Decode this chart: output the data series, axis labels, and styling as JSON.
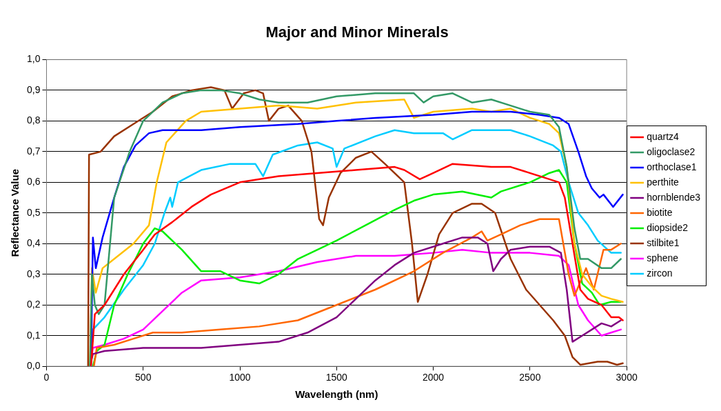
{
  "chart_data": {
    "type": "line",
    "title": "Major and Minor Minerals",
    "xlabel": "Wavelength (nm)",
    "ylabel": "Reflectance Value",
    "xlim": [
      0,
      3000
    ],
    "xticks": [
      0,
      500,
      1000,
      1500,
      2000,
      2500,
      3000
    ],
    "ylim": [
      0,
      1
    ],
    "yticks": [
      {
        "value": 0,
        "label": "0,0"
      },
      {
        "value": 0.1,
        "label": "0,1"
      },
      {
        "value": 0.2,
        "label": "0,2"
      },
      {
        "value": 0.3,
        "label": "0,3"
      },
      {
        "value": 0.4,
        "label": "0,4"
      },
      {
        "value": 0.5,
        "label": "0,5"
      },
      {
        "value": 0.6,
        "label": "0,6"
      },
      {
        "value": 0.7,
        "label": "0,7"
      },
      {
        "value": 0.8,
        "label": "0,8"
      },
      {
        "value": 0.9,
        "label": "0,9"
      },
      {
        "value": 1,
        "label": "1,0"
      }
    ],
    "grid": "y",
    "legend": "right",
    "marker": "none",
    "line_style": "solid",
    "series": [
      {
        "name": "quartz4",
        "color": "#ff0000",
        "x": [
          230,
          250,
          300,
          400,
          500,
          560,
          650,
          750,
          850,
          1000,
          1200,
          1400,
          1600,
          1800,
          1850,
          1930,
          2000,
          2100,
          2300,
          2400,
          2550,
          2650,
          2680,
          2720,
          2760,
          2800,
          2870,
          2920,
          2960,
          2980
        ],
        "values": [
          0,
          0.17,
          0.2,
          0.3,
          0.38,
          0.43,
          0.47,
          0.52,
          0.56,
          0.6,
          0.62,
          0.63,
          0.64,
          0.65,
          0.64,
          0.61,
          0.63,
          0.66,
          0.65,
          0.65,
          0.62,
          0.6,
          0.55,
          0.4,
          0.25,
          0.22,
          0.2,
          0.16,
          0.16,
          0.15
        ]
      },
      {
        "name": "oligoclase2",
        "color": "#339966",
        "x": [
          225,
          235,
          250,
          270,
          300,
          350,
          430,
          500,
          600,
          700,
          800,
          900,
          1000,
          1100,
          1200,
          1350,
          1500,
          1700,
          1900,
          1950,
          2000,
          2100,
          2200,
          2300,
          2400,
          2500,
          2600,
          2650,
          2690,
          2730,
          2760,
          2800,
          2870,
          2920,
          2970
        ],
        "values": [
          0,
          0.3,
          0.2,
          0.17,
          0.2,
          0.55,
          0.7,
          0.8,
          0.86,
          0.89,
          0.9,
          0.9,
          0.89,
          0.87,
          0.86,
          0.86,
          0.88,
          0.89,
          0.89,
          0.86,
          0.88,
          0.89,
          0.86,
          0.87,
          0.85,
          0.83,
          0.82,
          0.78,
          0.65,
          0.45,
          0.35,
          0.35,
          0.32,
          0.32,
          0.35
        ]
      },
      {
        "name": "orthoclase1",
        "color": "#0000ff",
        "x": [
          230,
          240,
          255,
          290,
          350,
          400,
          460,
          530,
          600,
          800,
          1000,
          1300,
          1500,
          1700,
          2000,
          2200,
          2400,
          2550,
          2650,
          2700,
          2750,
          2790,
          2820,
          2860,
          2880,
          2930,
          2980
        ],
        "values": [
          0,
          0.42,
          0.32,
          0.42,
          0.55,
          0.65,
          0.72,
          0.76,
          0.77,
          0.77,
          0.78,
          0.79,
          0.8,
          0.81,
          0.82,
          0.83,
          0.83,
          0.82,
          0.81,
          0.79,
          0.7,
          0.62,
          0.58,
          0.55,
          0.56,
          0.52,
          0.56
        ]
      },
      {
        "name": "perthite",
        "color": "#ffc000",
        "x": [
          225,
          235,
          255,
          290,
          350,
          450,
          530,
          570,
          620,
          720,
          800,
          1000,
          1200,
          1400,
          1600,
          1850,
          1900,
          2000,
          2200,
          2300,
          2400,
          2500,
          2600,
          2650,
          2690,
          2730,
          2770,
          2820,
          2870,
          2920,
          2980
        ],
        "values": [
          0,
          0.32,
          0.24,
          0.32,
          0.35,
          0.4,
          0.46,
          0.6,
          0.73,
          0.8,
          0.83,
          0.84,
          0.85,
          0.84,
          0.86,
          0.87,
          0.81,
          0.83,
          0.84,
          0.83,
          0.84,
          0.81,
          0.79,
          0.76,
          0.65,
          0.4,
          0.3,
          0.26,
          0.23,
          0.22,
          0.21
        ]
      },
      {
        "name": "hornblende3",
        "color": "#800080",
        "x": [
          225,
          240,
          300,
          500,
          800,
          1000,
          1200,
          1350,
          1500,
          1600,
          1700,
          1800,
          1900,
          2050,
          2150,
          2230,
          2280,
          2310,
          2350,
          2400,
          2500,
          2600,
          2660,
          2690,
          2720,
          2770,
          2820,
          2870,
          2920,
          2970
        ],
        "values": [
          0,
          0.04,
          0.05,
          0.06,
          0.06,
          0.07,
          0.08,
          0.11,
          0.16,
          0.22,
          0.28,
          0.33,
          0.37,
          0.4,
          0.42,
          0.42,
          0.4,
          0.31,
          0.35,
          0.38,
          0.39,
          0.39,
          0.37,
          0.25,
          0.08,
          0.1,
          0.12,
          0.14,
          0.13,
          0.15
        ]
      },
      {
        "name": "biotite",
        "color": "#ff6600",
        "x": [
          245,
          260,
          350,
          450,
          550,
          700,
          900,
          1100,
          1300,
          1500,
          1700,
          1900,
          2050,
          2200,
          2250,
          2280,
          2350,
          2450,
          2550,
          2650,
          2700,
          2730,
          2790,
          2830,
          2880,
          2920,
          2970
        ],
        "values": [
          0,
          0.06,
          0.07,
          0.09,
          0.11,
          0.11,
          0.12,
          0.13,
          0.15,
          0.2,
          0.25,
          0.31,
          0.37,
          0.42,
          0.44,
          0.41,
          0.43,
          0.46,
          0.48,
          0.48,
          0.3,
          0.23,
          0.32,
          0.25,
          0.38,
          0.38,
          0.4
        ]
      },
      {
        "name": "diopside2",
        "color": "#00ee00",
        "x": [
          240,
          260,
          300,
          350,
          420,
          500,
          560,
          600,
          700,
          800,
          900,
          1000,
          1100,
          1200,
          1300,
          1500,
          1650,
          1800,
          1900,
          2000,
          2150,
          2300,
          2350,
          2500,
          2600,
          2650,
          2690,
          2730,
          2770,
          2820,
          2860,
          2920,
          2970
        ],
        "values": [
          0,
          0.05,
          0.07,
          0.2,
          0.3,
          0.4,
          0.45,
          0.44,
          0.38,
          0.31,
          0.31,
          0.28,
          0.27,
          0.3,
          0.35,
          0.41,
          0.46,
          0.51,
          0.54,
          0.56,
          0.57,
          0.55,
          0.57,
          0.6,
          0.63,
          0.64,
          0.6,
          0.4,
          0.27,
          0.24,
          0.2,
          0.21,
          0.21
        ]
      },
      {
        "name": "stilbite1",
        "color": "#993300",
        "x": [
          215,
          220,
          280,
          350,
          450,
          550,
          650,
          750,
          850,
          920,
          960,
          1020,
          1080,
          1120,
          1150,
          1200,
          1250,
          1320,
          1370,
          1410,
          1430,
          1460,
          1520,
          1600,
          1680,
          1750,
          1850,
          1890,
          1920,
          1970,
          2030,
          2100,
          2200,
          2250,
          2320,
          2400,
          2480,
          2550,
          2620,
          2680,
          2720,
          2760,
          2850,
          2900,
          2950,
          2980
        ],
        "values": [
          0,
          0.69,
          0.7,
          0.75,
          0.79,
          0.83,
          0.88,
          0.9,
          0.91,
          0.9,
          0.84,
          0.89,
          0.9,
          0.89,
          0.8,
          0.84,
          0.85,
          0.8,
          0.7,
          0.48,
          0.46,
          0.55,
          0.63,
          0.68,
          0.7,
          0.66,
          0.6,
          0.4,
          0.21,
          0.3,
          0.43,
          0.5,
          0.53,
          0.53,
          0.5,
          0.35,
          0.25,
          0.2,
          0.15,
          0.1,
          0.03,
          0.005,
          0.015,
          0.015,
          0.005,
          0.01
        ]
      },
      {
        "name": "sphene",
        "color": "#ff00ff",
        "x": [
          225,
          240,
          300,
          400,
          500,
          600,
          700,
          800,
          1000,
          1200,
          1400,
          1600,
          1800,
          2000,
          2150,
          2300,
          2500,
          2650,
          2700,
          2750,
          2800,
          2870,
          2920,
          2970
        ],
        "values": [
          0,
          0.06,
          0.07,
          0.09,
          0.12,
          0.18,
          0.24,
          0.28,
          0.29,
          0.31,
          0.34,
          0.36,
          0.36,
          0.37,
          0.38,
          0.37,
          0.37,
          0.36,
          0.33,
          0.2,
          0.15,
          0.1,
          0.11,
          0.12
        ]
      },
      {
        "name": "zircon",
        "color": "#00ccff",
        "x": [
          225,
          240,
          300,
          400,
          500,
          560,
          610,
          640,
          650,
          680,
          800,
          950,
          1080,
          1120,
          1170,
          1300,
          1400,
          1480,
          1500,
          1540,
          1700,
          1800,
          1900,
          2050,
          2100,
          2200,
          2400,
          2500,
          2620,
          2660,
          2700,
          2750,
          2800,
          2850,
          2920,
          2970
        ],
        "values": [
          0,
          0.12,
          0.16,
          0.25,
          0.33,
          0.4,
          0.5,
          0.55,
          0.52,
          0.6,
          0.64,
          0.66,
          0.66,
          0.62,
          0.69,
          0.72,
          0.73,
          0.71,
          0.65,
          0.71,
          0.75,
          0.77,
          0.76,
          0.76,
          0.74,
          0.77,
          0.77,
          0.75,
          0.72,
          0.7,
          0.6,
          0.5,
          0.46,
          0.41,
          0.37,
          0.37
        ]
      }
    ]
  }
}
